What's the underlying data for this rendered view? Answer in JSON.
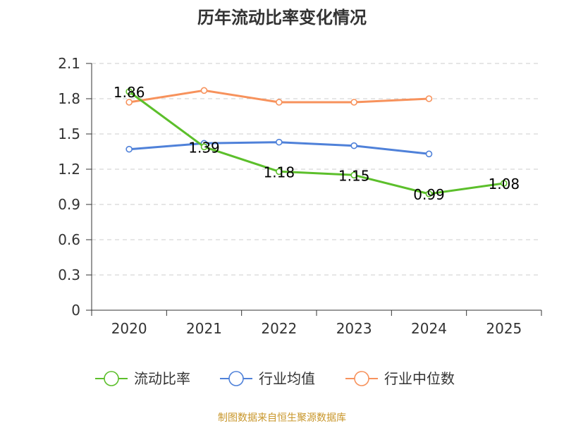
{
  "chart_data": {
    "type": "line",
    "title": "历年流动比率变化情况",
    "categories": [
      "2020",
      "2021",
      "2022",
      "2023",
      "2024",
      "2025"
    ],
    "y_ticks": [
      "0",
      "0.3",
      "0.6",
      "0.9",
      "1.2",
      "1.5",
      "1.8",
      "2.1"
    ],
    "ylim": [
      0,
      2.1
    ],
    "grid": true,
    "legend_position": "bottom",
    "series": [
      {
        "name": "流动比率",
        "color": "#5cbf2b",
        "values": [
          1.86,
          1.39,
          1.18,
          1.15,
          0.99,
          1.08
        ],
        "labels": [
          "1.86",
          "1.39",
          "1.18",
          "1.15",
          "0.99",
          "1.08"
        ]
      },
      {
        "name": "行业均值",
        "color": "#4f81d9",
        "values": [
          1.37,
          1.42,
          1.43,
          1.4,
          1.33,
          null
        ]
      },
      {
        "name": "行业中位数",
        "color": "#f7925c",
        "values": [
          1.77,
          1.87,
          1.77,
          1.77,
          1.8,
          null
        ]
      }
    ]
  },
  "source": {
    "text": "制图数据来自恒生聚源数据库",
    "color": "#c8962a"
  }
}
